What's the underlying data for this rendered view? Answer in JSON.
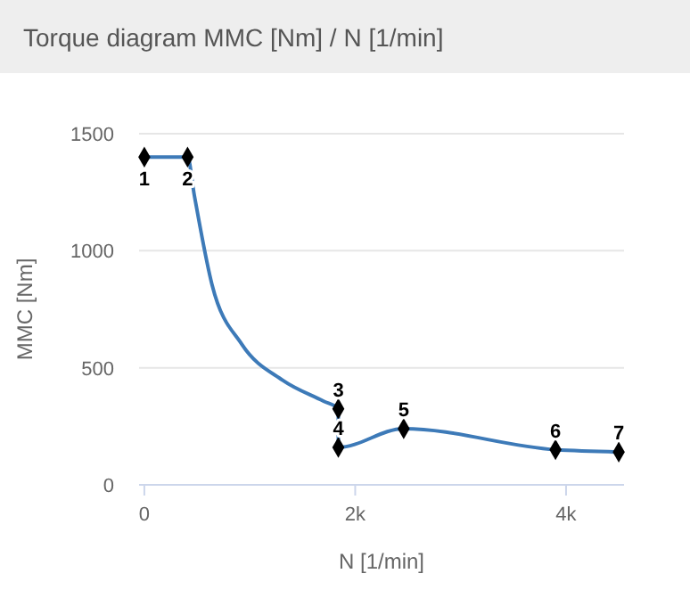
{
  "chart_data": {
    "type": "line",
    "title": "Torque diagram MMC [Nm] / N [1/min]",
    "xlabel": "N [1/min]",
    "ylabel": "MMC [Nm]",
    "xlim": [
      -50,
      4550
    ],
    "ylim": [
      0,
      1500
    ],
    "xticks": [
      0,
      {
        "value": 2000,
        "label": "2k"
      },
      {
        "value": 4000,
        "label": "4k"
      }
    ],
    "yticks": [
      0,
      500,
      1000,
      1500
    ],
    "grid": "y",
    "series": [
      {
        "color": "#3d7ab8",
        "marker": "none",
        "x": [
          0,
          410,
          474,
          642,
          925,
          1312,
          1702,
          1840,
          1840,
          2460,
          3900,
          4500
        ],
        "values": [
          1400,
          1400,
          1237,
          855,
          600,
          447,
          357,
          325,
          160,
          240,
          150,
          140
        ]
      },
      {
        "type": "scatter",
        "color": "#000000",
        "marker": "diamond",
        "x": [
          0,
          410,
          1840,
          1840,
          2460,
          3900,
          4500
        ],
        "values": [
          1400,
          1400,
          325,
          160,
          240,
          150,
          140
        ]
      }
    ],
    "annotations": [
      {
        "text": "1",
        "x": 0,
        "y": 1400
      },
      {
        "text": "2",
        "x": 410,
        "y": 1400
      },
      {
        "text": "3",
        "x": 1840,
        "y": 325
      },
      {
        "text": "4",
        "x": 1840,
        "y": 160
      },
      {
        "text": "5",
        "x": 2460,
        "y": 240
      },
      {
        "text": "6",
        "x": 3900,
        "y": 150
      },
      {
        "text": "7",
        "x": 4500,
        "y": 140
      }
    ]
  }
}
